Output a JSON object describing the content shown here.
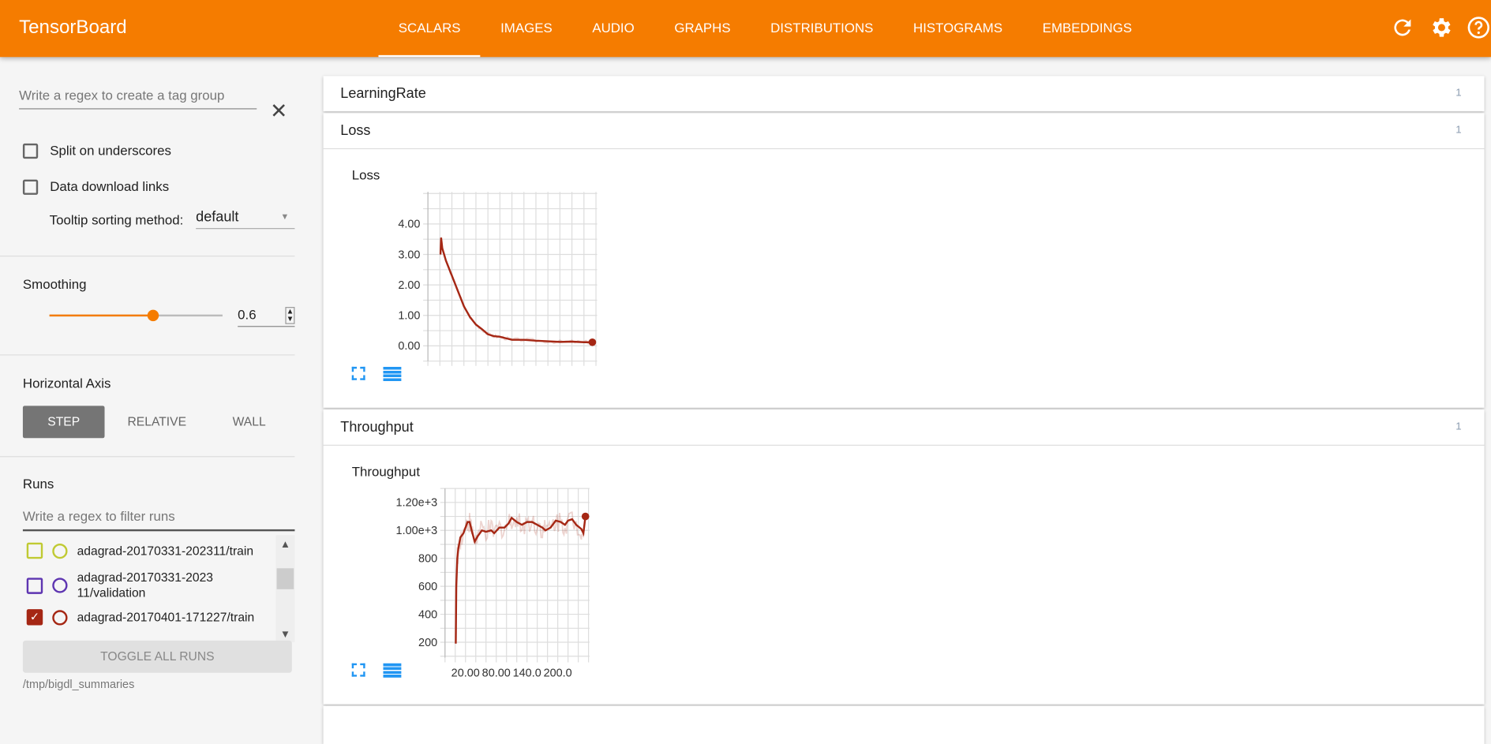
{
  "header": {
    "title": "TensorBoard",
    "tabs": [
      "SCALARS",
      "IMAGES",
      "AUDIO",
      "GRAPHS",
      "DISTRIBUTIONS",
      "HISTOGRAMS",
      "EMBEDDINGS"
    ],
    "active_tab": "SCALARS",
    "icons": [
      "refresh-icon",
      "settings-icon",
      "help-icon"
    ],
    "color": "#f57c00"
  },
  "sidebar": {
    "tag_group_placeholder": "Write a regex to create a tag group",
    "split_underscores": {
      "label": "Split on underscores",
      "checked": false
    },
    "download_links": {
      "label": "Data download links",
      "checked": false
    },
    "tooltip_label": "Tooltip sorting method:",
    "tooltip_value": "default",
    "smoothing_label": "Smoothing",
    "smoothing_value": "0.6",
    "smoothing_fraction": 0.6,
    "haxis_label": "Horizontal Axis",
    "haxis_options": [
      "STEP",
      "RELATIVE",
      "WALL"
    ],
    "haxis_selected": "STEP",
    "runs_label": "Runs",
    "runs_filter_placeholder": "Write a regex to filter runs",
    "runs": [
      {
        "name": "adagrad-20170331-202311/train",
        "color": "#c0ca33",
        "checked": false
      },
      {
        "name": "adagrad-20170331-202311/validation",
        "color": "#5e35b1",
        "checked": false
      },
      {
        "name": "adagrad-20170401-171227/train",
        "color": "#a52714",
        "checked": true
      }
    ],
    "toggle_all": "TOGGLE ALL RUNS",
    "logdir": "/tmp/bigdl_summaries"
  },
  "cards": [
    {
      "title": "LearningRate",
      "count": "1"
    },
    {
      "title": "Loss",
      "count": "1"
    },
    {
      "title": "Throughput",
      "count": "1"
    }
  ],
  "chart_data": [
    {
      "type": "line",
      "title": "Loss",
      "xlim": [
        -20,
        262
      ],
      "ylim": [
        -0.5,
        5.05
      ],
      "yticks": [
        "0.00",
        "1.00",
        "2.00",
        "3.00",
        "4.00"
      ],
      "ytick_values": [
        0,
        1,
        2,
        3,
        4
      ],
      "xticks": [],
      "grid": true,
      "color": "#a52714",
      "series": [
        {
          "x": [
            1,
            2,
            4,
            10,
            20,
            30,
            40,
            50,
            60,
            70,
            80,
            90,
            100,
            110,
            120,
            140,
            160,
            180,
            200,
            220,
            240,
            254
          ],
          "y": [
            3.0,
            3.55,
            3.2,
            2.8,
            2.3,
            1.8,
            1.3,
            0.95,
            0.7,
            0.55,
            0.38,
            0.32,
            0.3,
            0.25,
            0.2,
            0.2,
            0.17,
            0.15,
            0.13,
            0.14,
            0.12,
            0.12
          ]
        }
      ]
    },
    {
      "type": "line",
      "title": "Throughput",
      "xlim": [
        -20,
        262
      ],
      "ylim": [
        90,
        1300
      ],
      "yticks": [
        "200",
        "400",
        "600",
        "800",
        "1.00e+3",
        "1.20e+3"
      ],
      "ytick_values": [
        200,
        400,
        600,
        800,
        1000,
        1200
      ],
      "xticks": [
        "20.00",
        "80.00",
        "140.0",
        "200.0"
      ],
      "xtick_values": [
        20,
        80,
        140,
        200
      ],
      "grid": true,
      "color": "#a52714",
      "series": [
        {
          "x": [
            1,
            2,
            4,
            6,
            10,
            16,
            24,
            28,
            32,
            38,
            44,
            52,
            60,
            70,
            76,
            86,
            96,
            104,
            110,
            120,
            130,
            140,
            150,
            160,
            170,
            176,
            186,
            196,
            206,
            214,
            220,
            228,
            236,
            246,
            250,
            254
          ],
          "y": [
            190,
            600,
            800,
            870,
            950,
            980,
            1060,
            1060,
            1000,
            920,
            960,
            1000,
            990,
            1000,
            980,
            1020,
            1020,
            1050,
            1090,
            1060,
            1040,
            1060,
            1060,
            1040,
            1020,
            1000,
            1020,
            1070,
            1060,
            1040,
            1070,
            1080,
            1040,
            1010,
            980,
            1100
          ]
        }
      ]
    }
  ]
}
